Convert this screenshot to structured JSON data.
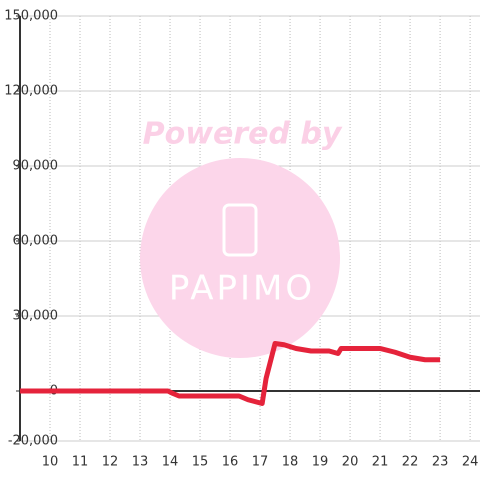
{
  "chart_data": {
    "type": "line",
    "watermark": {
      "title": "Powered by",
      "brand": "PAPIMO"
    },
    "x": [
      9,
      13.93,
      14.1,
      14.3,
      16.3,
      16.6,
      17.07,
      17.2,
      17.5,
      17.8,
      18.2,
      18.7,
      19.3,
      19.6,
      19.7,
      21,
      21.5,
      22,
      22.5,
      23
    ],
    "series": [
      {
        "color": "#e5233b",
        "values": [
          0,
          0,
          -1000,
          -2000,
          -2000,
          -3500,
          -5000,
          5000,
          19000,
          18500,
          17000,
          16000,
          16000,
          15000,
          17000,
          17000,
          15500,
          13500,
          12500,
          12500
        ]
      }
    ],
    "xlim": [
      9,
      24.33
    ],
    "xticks": [
      10,
      11,
      12,
      13,
      14,
      15,
      16,
      17,
      18,
      19,
      20,
      21,
      22,
      23,
      24
    ],
    "ylim": [
      -20000,
      150000
    ],
    "yticks": [
      {
        "value": -20000,
        "label": "-20,000"
      },
      0,
      {
        "value": 30000,
        "label": "30,000"
      },
      {
        "value": 60000,
        "label": "60,000"
      },
      {
        "value": 90000,
        "label": "90,000"
      },
      {
        "value": 120000,
        "label": "120,000"
      },
      {
        "value": 150000,
        "label": "150,000"
      }
    ],
    "grid": true
  }
}
